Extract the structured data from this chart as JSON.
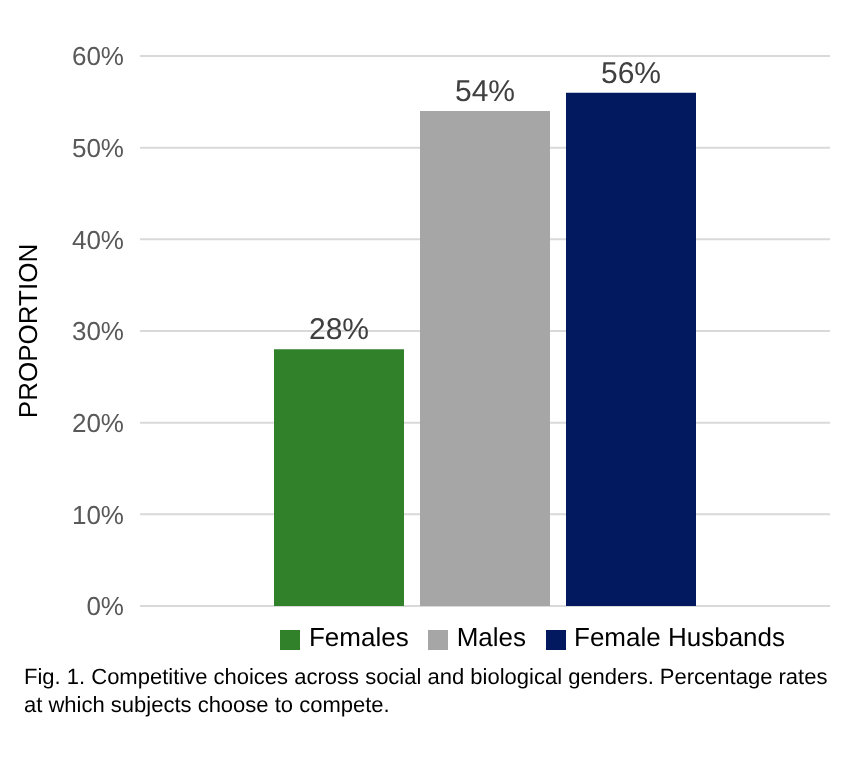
{
  "chart_data": {
    "type": "bar",
    "ylabel": "PROPORTION",
    "categories": [
      null
    ],
    "series": [
      {
        "name": "Females",
        "color": "#31812b",
        "values": [
          28
        ],
        "value_labels": [
          "28%"
        ]
      },
      {
        "name": "Males",
        "color": "#a6a6a6",
        "values": [
          54
        ],
        "value_labels": [
          "54%"
        ]
      },
      {
        "name": "Female Husbands",
        "color": "#021960",
        "values": [
          56
        ],
        "value_labels": [
          "56%"
        ]
      }
    ],
    "ylim": [
      0,
      60
    ],
    "yticks": [
      {
        "value": 0,
        "label": "0%"
      },
      {
        "value": 10,
        "label": "10%"
      },
      {
        "value": 20,
        "label": "20%"
      },
      {
        "value": 30,
        "label": "30%"
      },
      {
        "value": 40,
        "label": "40%"
      },
      {
        "value": 50,
        "label": "50%"
      },
      {
        "value": 60,
        "label": "60%"
      }
    ],
    "grid": "y",
    "legend": "bottom",
    "annotations": [
      "Fig. 1.   Competitive choices across social and biological genders. Percentage rates at which subjects choose to compete."
    ]
  }
}
